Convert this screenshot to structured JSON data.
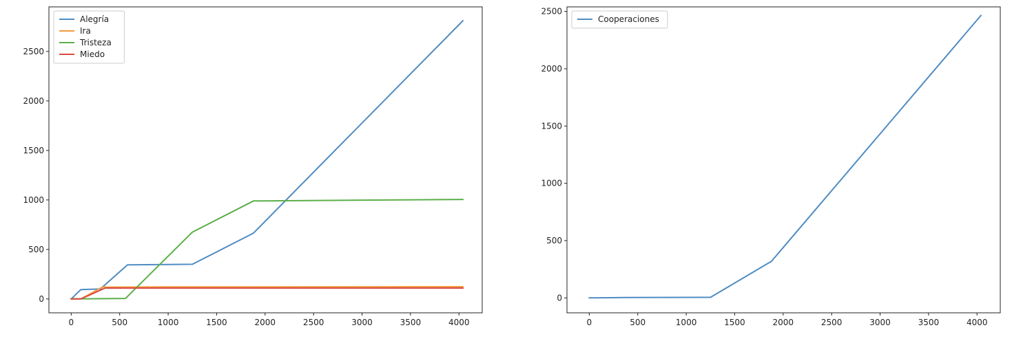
{
  "chart_data": [
    {
      "type": "line",
      "title": "",
      "xlabel": "",
      "ylabel": "",
      "xlim": [
        -230,
        4240
      ],
      "ylim": [
        -140,
        2950
      ],
      "xticks": [
        0,
        500,
        1000,
        1500,
        2000,
        2500,
        3000,
        3500,
        4000
      ],
      "yticks": [
        0,
        500,
        1000,
        1500,
        2000,
        2500
      ],
      "legend_position": "top-left",
      "series": [
        {
          "name": "Alegría",
          "color": "#4f8bc2",
          "points": [
            [
              0,
              0
            ],
            [
              100,
              95
            ],
            [
              300,
              100
            ],
            [
              580,
              345
            ],
            [
              1250,
              350
            ],
            [
              1880,
              665
            ],
            [
              4040,
              2810
            ]
          ]
        },
        {
          "name": "Ira",
          "color": "#f39b3c",
          "points": [
            [
              0,
              0
            ],
            [
              100,
              0
            ],
            [
              320,
              120
            ],
            [
              1000,
              122
            ],
            [
              4040,
              124
            ]
          ]
        },
        {
          "name": "Tristeza",
          "color": "#5aae47",
          "points": [
            [
              0,
              0
            ],
            [
              560,
              5
            ],
            [
              1250,
              675
            ],
            [
              1880,
              990
            ],
            [
              4040,
              1005
            ]
          ]
        },
        {
          "name": "Miedo",
          "color": "#d94a45",
          "points": [
            [
              0,
              0
            ],
            [
              100,
              0
            ],
            [
              350,
              110
            ],
            [
              1000,
              110
            ],
            [
              4040,
              110
            ]
          ]
        }
      ]
    },
    {
      "type": "line",
      "title": "",
      "xlabel": "",
      "ylabel": "",
      "xlim": [
        -230,
        4240
      ],
      "ylim": [
        -130,
        2540
      ],
      "xticks": [
        0,
        500,
        1000,
        1500,
        2000,
        2500,
        3000,
        3500,
        4000
      ],
      "yticks": [
        0,
        500,
        1000,
        1500,
        2000,
        2500
      ],
      "legend_position": "top-left",
      "series": [
        {
          "name": "Cooperaciones",
          "color": "#4f8bc2",
          "points": [
            [
              0,
              0
            ],
            [
              350,
              3
            ],
            [
              1250,
              5
            ],
            [
              1880,
              320
            ],
            [
              4040,
              2465
            ]
          ]
        }
      ]
    }
  ]
}
